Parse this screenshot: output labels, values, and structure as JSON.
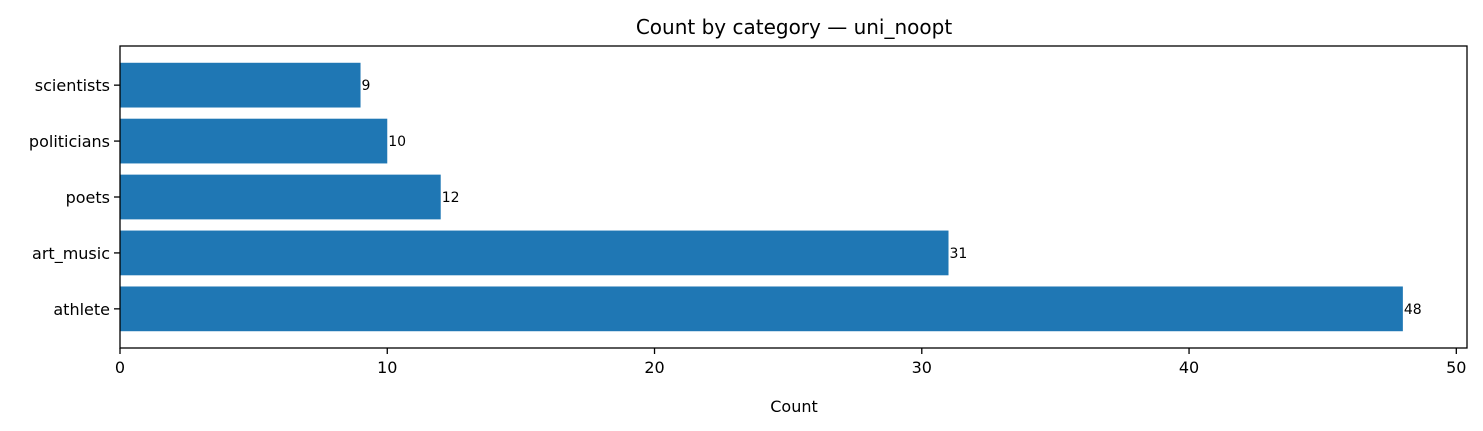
{
  "chart_data": {
    "type": "bar",
    "orientation": "horizontal",
    "title": "Count by category — uni_noopt",
    "xlabel": "Count",
    "ylabel": "",
    "categories": [
      "athlete",
      "art_music",
      "poets",
      "politicians",
      "scientists"
    ],
    "values": [
      48,
      31,
      12,
      10,
      9
    ],
    "data_labels": [
      "48",
      "31",
      "12",
      "10",
      "9"
    ],
    "xlim": [
      0,
      50.4
    ],
    "xticks": [
      0,
      10,
      20,
      30,
      40,
      50
    ],
    "xtick_labels": [
      "0",
      "10",
      "20",
      "30",
      "40",
      "50"
    ],
    "grid": false,
    "legend": "none",
    "colors": {
      "bar": "#1f77b4"
    }
  }
}
